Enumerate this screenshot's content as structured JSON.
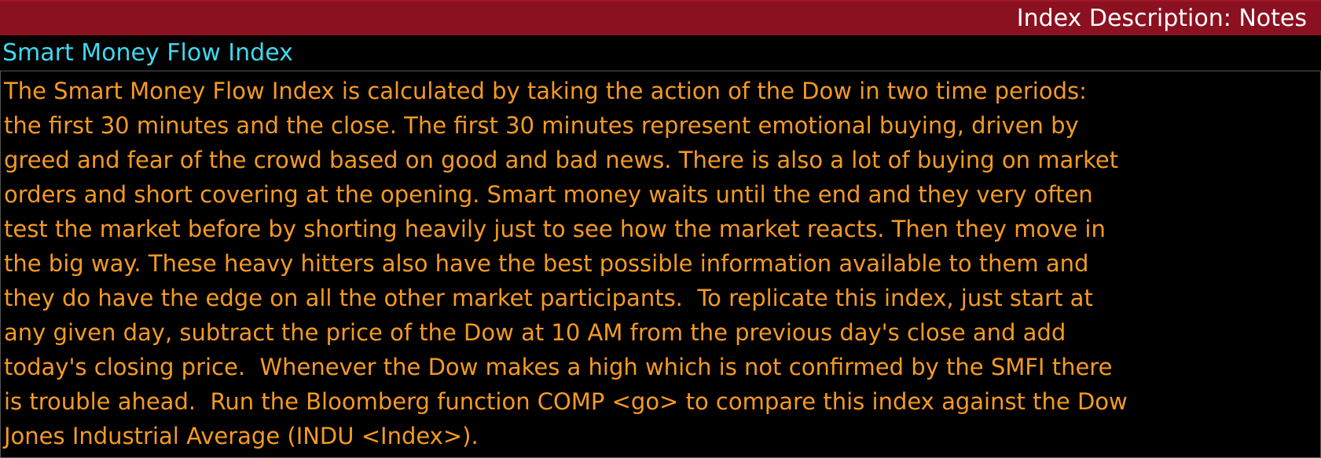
{
  "header": {
    "title": "Index Description: Notes"
  },
  "section": {
    "title": "Smart Money Flow Index"
  },
  "body": {
    "lines": [
      "The Smart Money Flow Index is calculated by taking the action of the Dow in two time periods:",
      "the first 30 minutes and the close. The first 30 minutes represent emotional buying, driven by",
      "greed and fear of the crowd based on good and bad news. There is also a lot of buying on market",
      "orders and short covering at the opening. Smart money waits until the end and they very often",
      "test the market before by shorting heavily just to see how the market reacts. Then they move in",
      "the big way. These heavy hitters also have the best possible information available to them and",
      "they do have the edge on all the other market participants.  To replicate this index, just start at",
      "any given day, subtract the price of the Dow at 10 AM from the previous day's close and add",
      "today's closing price.  Whenever the Dow makes a high which is not confirmed by the SMFI there",
      "is trouble ahead.  Run the Bloomberg function COMP <go> to compare this index against the Dow",
      "Jones Industrial Average (INDU <Index>)."
    ]
  }
}
